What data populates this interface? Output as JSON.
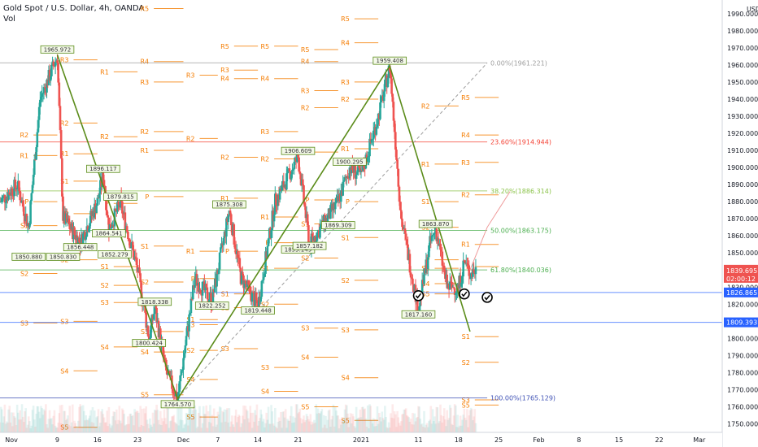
{
  "header": {
    "title": "Gold Spot / U.S. Dollar, 4h, OANDA",
    "indicator": "Vol"
  },
  "price_axis": {
    "currency": "USD",
    "ticks": [
      "1990.000",
      "1980.000",
      "1970.000",
      "1960.000",
      "1950.000",
      "1940.000",
      "1930.000",
      "1920.000",
      "1910.000",
      "1900.000",
      "1890.000",
      "1880.000",
      "1870.000",
      "1860.000",
      "1850.000",
      "1840.000",
      "1830.000",
      "1820.000",
      "1810.000",
      "1800.000",
      "1790.000",
      "1780.000",
      "1770.000",
      "1760.000",
      "1750.000"
    ],
    "last_price": "1839.695",
    "countdown": "02:00:12",
    "line_a": "1826.865",
    "line_b": "1809.393"
  },
  "time_axis": [
    "Nov",
    "9",
    "16",
    "23",
    "Dec",
    "7",
    "14",
    "21",
    "2021",
    "11",
    "18",
    "25",
    "Feb",
    "8",
    "15",
    "22",
    "Mar"
  ],
  "colors": {
    "up": "#26a69a",
    "down": "#ef5350",
    "zigzag": "#5b8c1a",
    "pivot": "#f57c00",
    "fib_top": "#9e9e9e",
    "fib_red": "#f44336",
    "fib_382": "#8bc34a",
    "fib_500": "#4caf50",
    "fib_618": "#4caf50",
    "fib_100": "#3f51b5",
    "blue_line": "#2962ff"
  },
  "fib_levels": [
    {
      "label": "0.00%(1961.221)",
      "price": 1961.221,
      "color": "#9e9e9e"
    },
    {
      "label": "23.60%(1914.944)",
      "price": 1914.944,
      "color": "#f44336"
    },
    {
      "label": "38.20%(1886.314)",
      "price": 1886.314,
      "color": "#8bc34a"
    },
    {
      "label": "50.00%(1863.175)",
      "price": 1863.175,
      "color": "#4caf50"
    },
    {
      "label": "61.80%(1840.036)",
      "price": 1840.036,
      "color": "#4caf50"
    },
    {
      "label": "100.00%(1765.129)",
      "price": 1765.129,
      "color": "#3f51b5"
    }
  ],
  "swing_labels": [
    {
      "text": "1965.972",
      "x": "2020-11-09",
      "price": 1965.972,
      "pos": "above"
    },
    {
      "text": "1850.880",
      "x": "2020-11-04",
      "price": 1850.88,
      "pos": "below"
    },
    {
      "text": "1856.448",
      "x": "2020-11-13",
      "price": 1856.448,
      "pos": "below"
    },
    {
      "text": "1850.830",
      "x": "2020-11-10",
      "price": 1850.83,
      "pos": "below"
    },
    {
      "text": "1896.117",
      "x": "2020-11-17",
      "price": 1896.117,
      "pos": "above"
    },
    {
      "text": "1864.541",
      "x": "2020-11-18",
      "price": 1864.541,
      "pos": "below"
    },
    {
      "text": "1879.815",
      "x": "2020-11-20",
      "price": 1879.815,
      "pos": "above"
    },
    {
      "text": "1852.279",
      "x": "2020-11-19",
      "price": 1852.279,
      "pos": "below"
    },
    {
      "text": "1818.338",
      "x": "2020-11-26",
      "price": 1818.338,
      "pos": "above"
    },
    {
      "text": "1800.424",
      "x": "2020-11-25",
      "price": 1800.424,
      "pos": "below"
    },
    {
      "text": "1764.570",
      "x": "2020-11-30",
      "price": 1764.57,
      "pos": "below"
    },
    {
      "text": "1875.308",
      "x": "2020-12-09",
      "price": 1875.308,
      "pos": "above"
    },
    {
      "text": "1822.252",
      "x": "2020-12-06",
      "price": 1822.252,
      "pos": "below"
    },
    {
      "text": "1819.448",
      "x": "2020-12-14",
      "price": 1819.448,
      "pos": "below"
    },
    {
      "text": "1906.609",
      "x": "2020-12-21",
      "price": 1906.609,
      "pos": "above"
    },
    {
      "text": "1855.149",
      "x": "2020-12-21",
      "price": 1855.149,
      "pos": "below"
    },
    {
      "text": "1857.182",
      "x": "2020-12-23",
      "price": 1857.182,
      "pos": "below"
    },
    {
      "text": "1900.295",
      "x": "2020-12-30",
      "price": 1900.295,
      "pos": "above"
    },
    {
      "text": "1869.309",
      "x": "2020-12-28",
      "price": 1869.309,
      "pos": "below"
    },
    {
      "text": "1959.408",
      "x": "2021-01-06",
      "price": 1959.408,
      "pos": "above"
    },
    {
      "text": "1863.870",
      "x": "2021-01-14",
      "price": 1863.87,
      "pos": "above"
    },
    {
      "text": "1817.160",
      "x": "2021-01-11",
      "price": 1817.16,
      "pos": "below"
    }
  ],
  "pivot_weeks": [
    {
      "start": "2020-11-02",
      "end": "2020-11-09",
      "levels": {
        "R2": 1919,
        "R1": 1907,
        "P": 1880,
        "S1": 1866,
        "S2": 1838,
        "S3": 1809
      }
    },
    {
      "start": "2020-11-09",
      "end": "2020-11-16",
      "levels": {
        "R3": 1963,
        "R2": 1926,
        "R1": 1908,
        "P": 1873,
        "S1": 1892,
        "S2": 1846,
        "S3": 1810,
        "S4": 1781,
        "S5": 1748
      }
    },
    {
      "start": "2020-11-16",
      "end": "2020-11-23",
      "levels": {
        "R1": 1956,
        "R2": 1918,
        "P": 1879,
        "S1": 1842,
        "S2": 1831,
        "S3": 1821,
        "S4": 1795
      }
    },
    {
      "start": "2020-11-23",
      "end": "2020-12-01",
      "levels": {
        "R5": 1993,
        "R4": 1962,
        "R3": 1950,
        "R2": 1921,
        "R1": 1910,
        "P": 1883,
        "S1": 1854,
        "S2": 1833,
        "S3": 1804,
        "S4": 1792,
        "S5": 1767
      }
    },
    {
      "start": "2020-12-01",
      "end": "2020-12-07",
      "levels": {
        "R3": 1954,
        "R2": 1917,
        "R1": 1851,
        "P": 1835,
        "S1": 1811,
        "S2": 1793,
        "S3": 1808,
        "S4": 1776,
        "S5": 1754
      }
    },
    {
      "start": "2020-12-07",
      "end": "2020-12-14",
      "levels": {
        "R5": 1971,
        "R4": 1952,
        "R3": 1957,
        "R2": 1906,
        "R1": 1882,
        "P": 1851,
        "S1": 1826,
        "S2": 1818,
        "S3": 1794
      }
    },
    {
      "start": "2020-12-14",
      "end": "2020-12-21",
      "levels": {
        "R5": 1971,
        "R4": 1952,
        "R3": 1921,
        "R2": 1905,
        "R1": 1871,
        "P": 1856,
        "S1": 1841,
        "S2": 1820,
        "S3": 1783,
        "S4": 1769
      }
    },
    {
      "start": "2020-12-21",
      "end": "2020-12-28",
      "levels": {
        "R5": 1969,
        "R4": 1962,
        "R3": 1945,
        "R2": 1935,
        "R1": 1909,
        "P": 1881,
        "S1": 1867,
        "S2": 1847,
        "S3": 1806,
        "S4": 1789,
        "S5": 1760
      }
    },
    {
      "start": "2020-12-28",
      "end": "2021-01-04",
      "levels": {
        "R5": 1987,
        "R4": 1973,
        "R3": 1950,
        "R2": 1940,
        "R1": 1911,
        "P": 1880,
        "S1": 1859,
        "S2": 1834,
        "S3": 1805,
        "S4": 1777,
        "S5": 1752
      }
    },
    {
      "start": "2021-01-11",
      "end": "2021-01-18",
      "levels": {
        "R2": 1936,
        "R1": 1902,
        "P": 1846,
        "S1": 1880,
        "S2": 1865,
        "S3": 1841,
        "S4": 1832,
        "S5": 1826
      }
    },
    {
      "start": "2021-01-18",
      "end": "2021-01-25",
      "levels": {
        "R5": 1941,
        "R4": 1919,
        "R3": 1903,
        "R2": 1884,
        "R1": 1855,
        "P": 1842,
        "S1": 1801,
        "S2": 1786,
        "S3": 1764,
        "S5": 1761
      }
    }
  ],
  "chart_data": {
    "type": "line",
    "title": "Gold Spot / U.S. Dollar, 4h, OANDA",
    "ylabel": "USD",
    "ylim": [
      1745,
      1998
    ],
    "x_range": [
      "2020-10-30",
      "2021-03-05"
    ],
    "grid": false,
    "series": [
      {
        "name": "",
        "x": [
          "2020-10-30",
          "2020-11-02",
          "2020-11-04",
          "2020-11-06",
          "2020-11-09",
          "2020-11-10",
          "2020-11-13",
          "2020-11-16",
          "2020-11-17",
          "2020-11-18",
          "2020-11-20",
          "2020-11-23",
          "2020-11-25",
          "2020-11-26",
          "2020-11-28",
          "2020-11-30",
          "2020-12-03",
          "2020-12-06",
          "2020-12-09",
          "2020-12-11",
          "2020-12-14",
          "2020-12-17",
          "2020-12-21",
          "2020-12-23",
          "2020-12-28",
          "2020-12-30",
          "2021-01-01",
          "2021-01-04",
          "2021-01-06",
          "2021-01-08",
          "2021-01-11",
          "2021-01-13",
          "2021-01-14",
          "2021-01-16",
          "2021-01-18",
          "2021-01-19",
          "2021-01-20",
          "2021-01-21"
        ],
        "values": [
          1880,
          1890,
          1865,
          1940,
          1965,
          1871,
          1856,
          1880,
          1896,
          1864,
          1879,
          1840,
          1800,
          1818,
          1780,
          1765,
          1835,
          1822,
          1875,
          1836,
          1819,
          1880,
          1906,
          1855,
          1880,
          1900,
          1895,
          1930,
          1959,
          1870,
          1817,
          1855,
          1864,
          1830,
          1830,
          1845,
          1838,
          1840
        ]
      }
    ],
    "zigzag": [
      {
        "x": "2020-11-09",
        "y": 1965.972
      },
      {
        "x": "2020-11-30",
        "y": 1764.57
      },
      {
        "x": "2021-01-06",
        "y": 1959.408
      },
      {
        "x": "2021-01-20",
        "y": 1804
      }
    ],
    "projection": [
      {
        "x": "2021-01-20",
        "y": 1840
      },
      {
        "x": "2021-01-23",
        "y": 1865
      },
      {
        "x": "2021-01-27",
        "y": 1886
      }
    ],
    "check_marks": [
      {
        "x": "2021-01-11",
        "y": 1825
      },
      {
        "x": "2021-01-19",
        "y": 1826
      },
      {
        "x": "2021-01-23",
        "y": 1824
      }
    ]
  }
}
